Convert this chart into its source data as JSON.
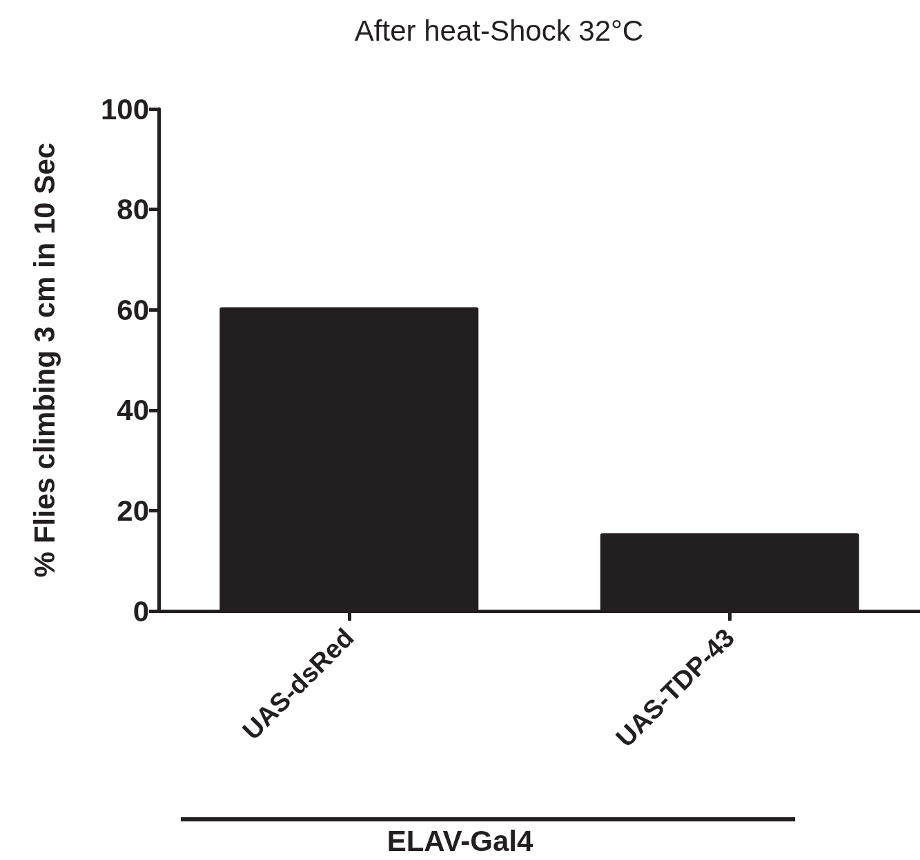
{
  "chart_data": {
    "type": "bar",
    "title": "After heat-Shock 32°C",
    "xlabel": "ELAV-Gal4",
    "ylabel": "% Flies climbing 3 cm in 10 Sec",
    "categories": [
      "UAS-dsRed",
      "UAS-TDP-43"
    ],
    "values": [
      60.5,
      15.5
    ],
    "color": "#231f20",
    "ylim": [
      0,
      100
    ],
    "yticks": [
      0,
      20,
      40,
      60,
      80,
      100
    ],
    "grid": false
  }
}
